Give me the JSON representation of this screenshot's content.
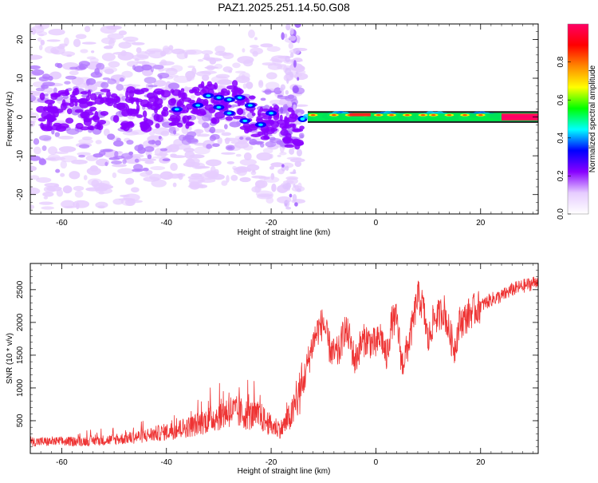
{
  "title": "PAZ1.2025.251.14.50.G08",
  "chart_data": [
    {
      "type": "heatmap",
      "xlabel": "Height of straight line (km)",
      "ylabel": "Frequency (Hz)",
      "xlim": [
        -66,
        31
      ],
      "ylim": [
        -25,
        24
      ],
      "x_ticks": [
        -60,
        -40,
        -20,
        0,
        20
      ],
      "x_tick_labels": [
        "-60",
        "-40",
        "-20",
        "0",
        "20"
      ],
      "y_ticks": [
        -20,
        -10,
        0,
        10,
        20
      ],
      "y_tick_labels": [
        "-20",
        "-10",
        "0",
        "10",
        "20"
      ],
      "colorbar": {
        "label": "Normalized spectral amplitude",
        "range": [
          0,
          1
        ],
        "ticks": [
          0.0,
          0.2,
          0.4,
          0.6,
          0.8
        ],
        "tick_labels": [
          "0.0",
          "0.2",
          "0.4",
          "0.6",
          "0.8"
        ],
        "colormap": [
          "#ffffff",
          "#e6ccff",
          "#8800ff",
          "#0000ff",
          "#00ffff",
          "#00ff00",
          "#ffff00",
          "#ff8800",
          "#ff0000",
          "#ff0066"
        ]
      },
      "description_points": [
        {
          "x": -60,
          "y": 2,
          "value": 0.15
        },
        {
          "x": -45,
          "y": 3,
          "value": 0.2
        },
        {
          "x": -30,
          "y": 4,
          "value": 0.35
        },
        {
          "x": -20,
          "y": 0,
          "value": 0.25
        },
        {
          "x": -14,
          "y": -1,
          "value": 0.4
        },
        {
          "x": -5,
          "y": 0.6,
          "value": 0.75
        },
        {
          "x": 10,
          "y": 0.6,
          "value": 0.7
        },
        {
          "x": 25,
          "y": 0,
          "value": 0.95
        }
      ]
    },
    {
      "type": "line",
      "xlabel": "Height of straight line (km)",
      "ylabel": "SNR (10 * v/v)",
      "xlim": [
        -66,
        31
      ],
      "ylim": [
        0,
        2900
      ],
      "x_ticks": [
        -60,
        -40,
        -20,
        0,
        20
      ],
      "x_tick_labels": [
        "-60",
        "-40",
        "-20",
        "0",
        "20"
      ],
      "y_ticks": [
        500,
        1000,
        1500,
        2000,
        2500
      ],
      "y_tick_labels": [
        "500",
        "1000",
        "1500",
        "2000",
        "2500"
      ],
      "color": "#ee3333",
      "series": [
        {
          "x": [
            -66,
            -60,
            -55,
            -50,
            -45,
            -40,
            -35,
            -30,
            -28,
            -25,
            -22,
            -20,
            -18,
            -16,
            -14,
            -12,
            -11,
            -10,
            -9,
            -8,
            -7,
            -6,
            -5,
            -4,
            -3,
            -2,
            -1,
            0,
            1,
            2,
            3,
            4,
            5,
            6,
            7,
            8,
            9,
            10,
            11,
            12,
            13,
            14,
            15,
            16,
            17,
            18,
            19,
            20,
            22,
            24,
            26,
            28,
            30,
            31
          ],
          "y": [
            180,
            180,
            190,
            210,
            260,
            330,
            420,
            580,
            650,
            600,
            560,
            420,
            380,
            600,
            1050,
            1700,
            1900,
            2000,
            1650,
            1500,
            1550,
            1900,
            1750,
            1400,
            1650,
            1750,
            1700,
            1650,
            1800,
            1450,
            2000,
            2050,
            1350,
            1600,
            1950,
            2400,
            2250,
            1700,
            2050,
            2100,
            2200,
            1850,
            1600,
            2000,
            2050,
            2150,
            2200,
            2250,
            2350,
            2400,
            2500,
            2550,
            2600,
            2650
          ]
        }
      ]
    }
  ]
}
